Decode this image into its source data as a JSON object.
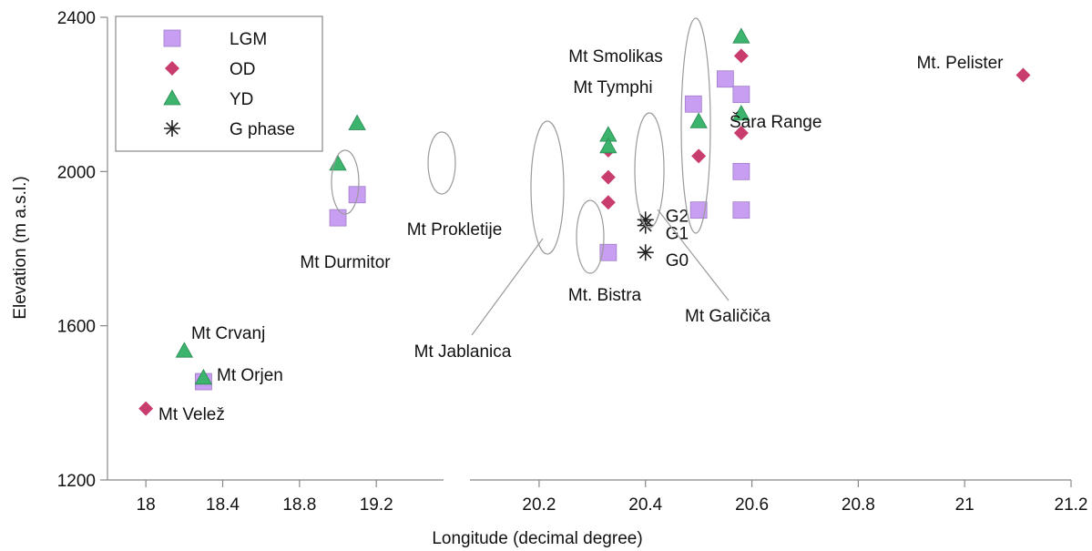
{
  "chart_data": {
    "type": "scatter",
    "xlabel": "Longitude (decimal degree)",
    "ylabel": "Elevation (m a.s.l.)",
    "ylim": [
      1200,
      2400
    ],
    "broken_x_axis": true,
    "x_segments": [
      {
        "range": [
          17.8,
          19.55
        ],
        "ticks": [
          18,
          18.4,
          18.8,
          19.2
        ]
      },
      {
        "range": [
          20.07,
          21.2
        ],
        "ticks": [
          20.2,
          20.4,
          20.6,
          20.8,
          21,
          21.2
        ]
      }
    ],
    "y_ticks": [
      1200,
      1600,
      2000,
      2400
    ],
    "legend_position": "top-left",
    "series": [
      {
        "name": "LGM",
        "marker": "square",
        "color": "#c89ef2",
        "points": [
          {
            "x": 18.3,
            "y": 1455
          },
          {
            "x": 19.0,
            "y": 1880
          },
          {
            "x": 19.1,
            "y": 1940
          },
          {
            "x": 20.33,
            "y": 1790
          },
          {
            "x": 20.49,
            "y": 2175
          },
          {
            "x": 20.5,
            "y": 1900
          },
          {
            "x": 20.55,
            "y": 2240
          },
          {
            "x": 20.58,
            "y": 2200
          },
          {
            "x": 20.58,
            "y": 2000
          },
          {
            "x": 20.58,
            "y": 1900
          }
        ]
      },
      {
        "name": "OD",
        "marker": "diamond",
        "color": "#c83c6e",
        "points": [
          {
            "x": 18.0,
            "y": 1385
          },
          {
            "x": 20.33,
            "y": 2055
          },
          {
            "x": 20.33,
            "y": 1985
          },
          {
            "x": 20.33,
            "y": 1920
          },
          {
            "x": 20.5,
            "y": 2040
          },
          {
            "x": 20.58,
            "y": 2300
          },
          {
            "x": 20.58,
            "y": 2100
          },
          {
            "x": 21.11,
            "y": 2250
          }
        ]
      },
      {
        "name": "YD",
        "marker": "triangle",
        "color": "#3cb46e",
        "points": [
          {
            "x": 18.2,
            "y": 1535
          },
          {
            "x": 18.3,
            "y": 1465
          },
          {
            "x": 19.0,
            "y": 2020
          },
          {
            "x": 19.1,
            "y": 2125
          },
          {
            "x": 20.33,
            "y": 2095
          },
          {
            "x": 20.33,
            "y": 2065
          },
          {
            "x": 20.5,
            "y": 2130
          },
          {
            "x": 20.58,
            "y": 2350
          },
          {
            "x": 20.58,
            "y": 2150
          }
        ]
      },
      {
        "name": "G phase",
        "marker": "asterisk",
        "color": "#222222",
        "points": [
          {
            "x": 20.4,
            "y": 1875,
            "label": "G2"
          },
          {
            "x": 20.4,
            "y": 1860,
            "label": "G1"
          },
          {
            "x": 20.4,
            "y": 1790,
            "label": "G0"
          }
        ]
      }
    ],
    "annotations": [
      {
        "text": "Mt Crvanj"
      },
      {
        "text": "Mt Orjen"
      },
      {
        "text": "Mt Velež"
      },
      {
        "text": "Mt Durmitor"
      },
      {
        "text": "Mt Prokletije"
      },
      {
        "text": "Mt Jablanica"
      },
      {
        "text": "Mt. Bistra"
      },
      {
        "text": "Mt Galičiča"
      },
      {
        "text": "Mt Tymphi"
      },
      {
        "text": "Mt Smolikas"
      },
      {
        "text": "Šara Range"
      },
      {
        "text": "Mt. Pelister"
      }
    ]
  }
}
